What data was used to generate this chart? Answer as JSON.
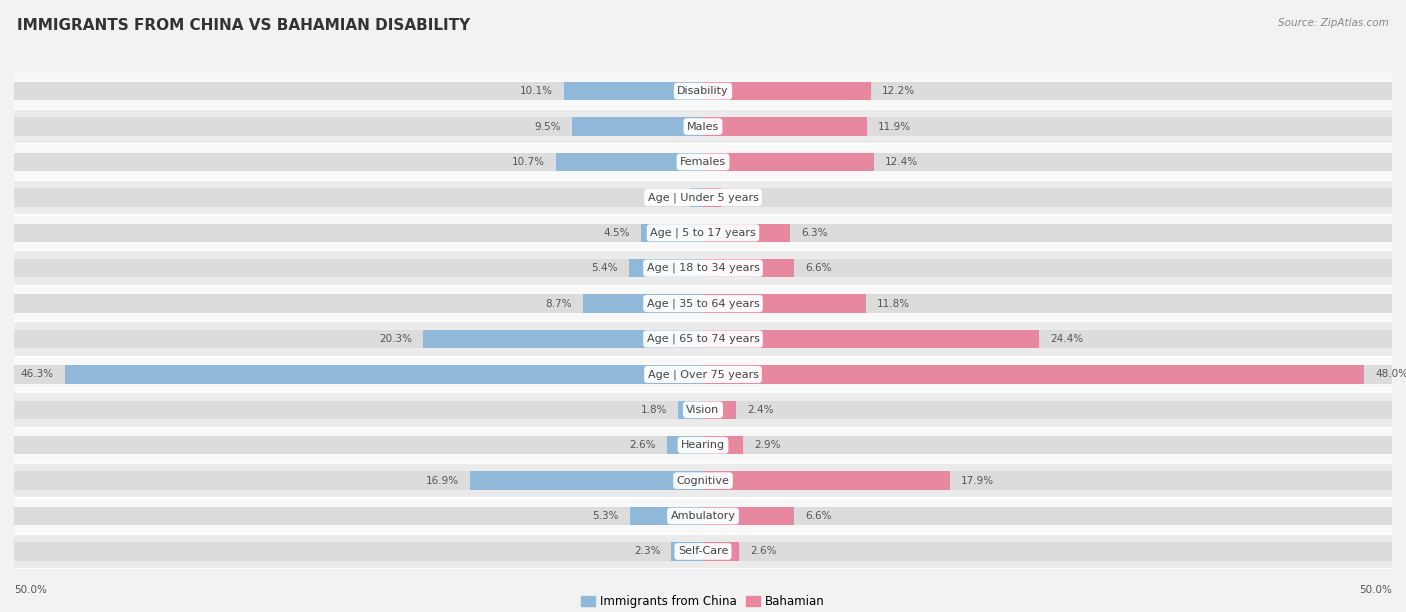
{
  "title": "IMMIGRANTS FROM CHINA VS BAHAMIAN DISABILITY",
  "source": "Source: ZipAtlas.com",
  "categories": [
    "Disability",
    "Males",
    "Females",
    "Age | Under 5 years",
    "Age | 5 to 17 years",
    "Age | 18 to 34 years",
    "Age | 35 to 64 years",
    "Age | 65 to 74 years",
    "Age | Over 75 years",
    "Vision",
    "Hearing",
    "Cognitive",
    "Ambulatory",
    "Self-Care"
  ],
  "china_values": [
    10.1,
    9.5,
    10.7,
    0.96,
    4.5,
    5.4,
    8.7,
    20.3,
    46.3,
    1.8,
    2.6,
    16.9,
    5.3,
    2.3
  ],
  "bahamian_values": [
    12.2,
    11.9,
    12.4,
    1.3,
    6.3,
    6.6,
    11.8,
    24.4,
    48.0,
    2.4,
    2.9,
    17.9,
    6.6,
    2.6
  ],
  "china_color": "#90b8d8",
  "bahamian_color": "#e888a0",
  "china_label": "Immigrants from China",
  "bahamian_label": "Bahamian",
  "axis_limit": 50.0,
  "background_color": "#f2f2f2",
  "row_bg_light": "#f8f8f8",
  "row_bg_dark": "#ebebeb",
  "bar_bg_color": "#dcdcdc",
  "title_fontsize": 11,
  "label_fontsize": 8,
  "value_fontsize": 7.5,
  "legend_fontsize": 8.5
}
